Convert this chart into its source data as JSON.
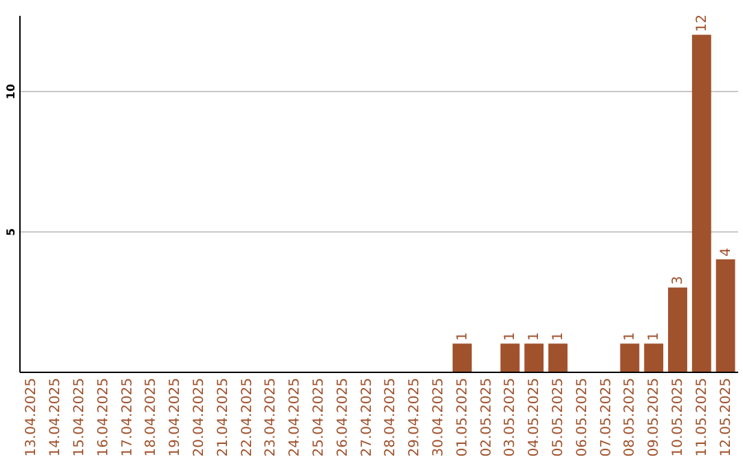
{
  "chart_data": {
    "type": "bar",
    "categories": [
      "13.04.2025",
      "14.04.2025",
      "15.04.2025",
      "16.04.2025",
      "17.04.2025",
      "18.04.2025",
      "19.04.2025",
      "20.04.2025",
      "21.04.2025",
      "22.04.2025",
      "23.04.2025",
      "24.04.2025",
      "25.04.2025",
      "26.04.2025",
      "27.04.2025",
      "28.04.2025",
      "29.04.2025",
      "30.04.2025",
      "01.05.2025",
      "02.05.2025",
      "03.05.2025",
      "04.05.2025",
      "05.05.2025",
      "06.05.2025",
      "07.05.2025",
      "08.05.2025",
      "09.05.2025",
      "10.05.2025",
      "11.05.2025",
      "12.05.2025"
    ],
    "values": [
      0,
      0,
      0,
      0,
      0,
      0,
      0,
      0,
      0,
      0,
      0,
      0,
      0,
      0,
      0,
      0,
      0,
      0,
      1,
      0,
      1,
      1,
      1,
      0,
      0,
      1,
      1,
      3,
      12,
      4
    ],
    "value_labels": [
      null,
      null,
      null,
      null,
      null,
      null,
      null,
      null,
      null,
      null,
      null,
      null,
      null,
      null,
      null,
      null,
      null,
      null,
      "1",
      null,
      "1",
      "1",
      "1",
      null,
      null,
      "1",
      "1",
      "3",
      "12",
      "4"
    ],
    "color": "#a0522d",
    "ylim": [
      0,
      12.7
    ],
    "yticks": [
      5,
      10
    ],
    "grid": "y"
  }
}
